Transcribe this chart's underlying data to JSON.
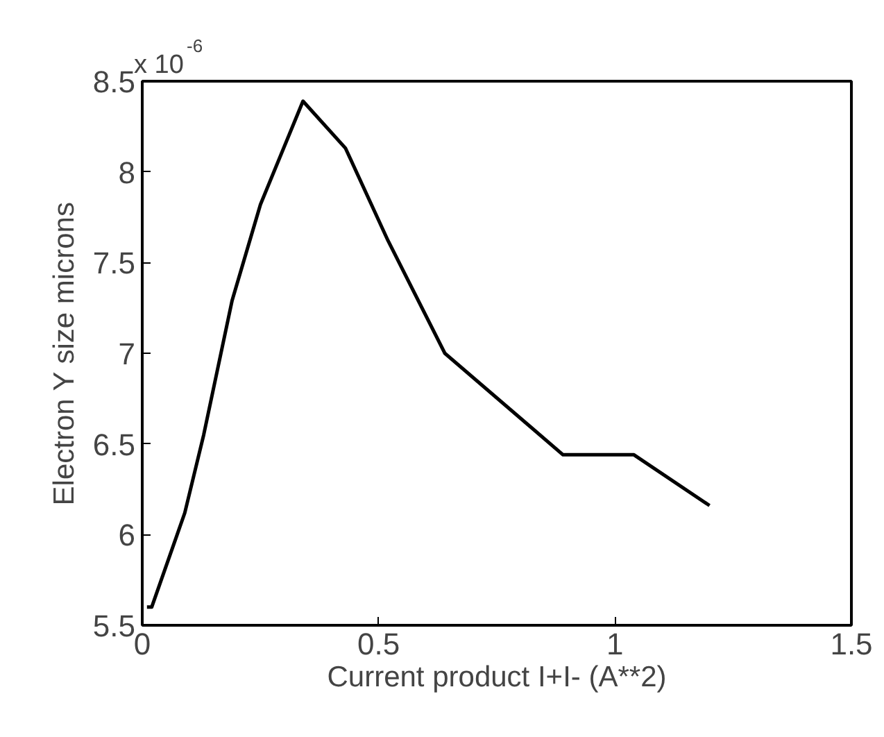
{
  "chart_data": {
    "type": "line",
    "xlabel": "Current product I+I- (A**2)",
    "ylabel": "Electron Y size microns",
    "annotations": [
      "x 10$^{-6}$"
    ],
    "x": [
      0.01,
      0.02,
      0.09,
      0.13,
      0.19,
      0.25,
      0.34,
      0.43,
      0.52,
      0.64,
      0.89,
      1.04,
      1.2
    ],
    "series": [
      {
        "color": "#000000",
        "values": [
          5.6,
          5.6,
          6.12,
          6.55,
          7.29,
          7.82,
          8.39,
          8.13,
          7.62,
          7.0,
          6.44,
          6.44,
          6.16
        ]
      }
    ],
    "xlim": [
      0,
      1.5
    ],
    "ylim": [
      5.5,
      8.5
    ],
    "xticks": [
      0,
      0.5,
      1,
      1.5
    ],
    "yticks": [
      5.5,
      6,
      6.5,
      7,
      7.5,
      8,
      8.5
    ],
    "grid": false,
    "marker": "none",
    "line_style": "solid"
  }
}
